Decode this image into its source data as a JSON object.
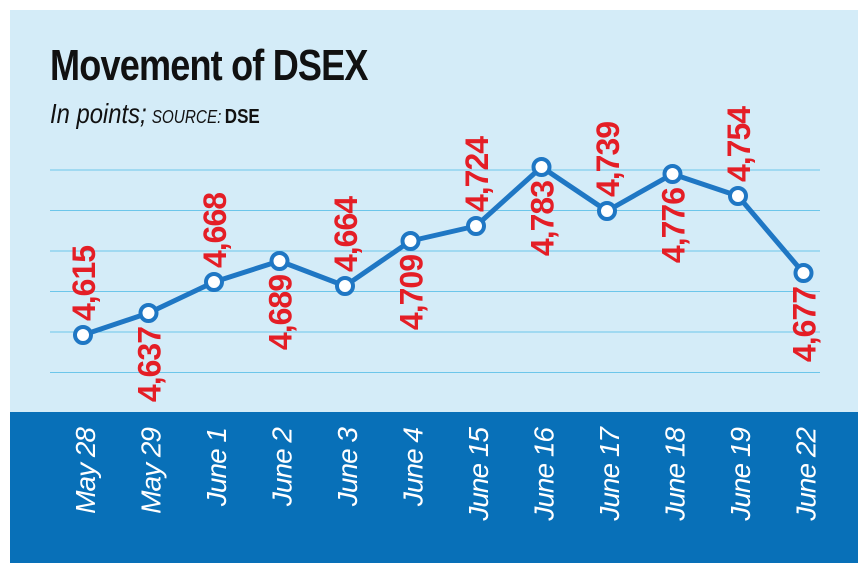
{
  "title": "Movement of DSEX",
  "subtitle": "In points;",
  "source_label": "SOURCE:",
  "source": "DSE",
  "colors": {
    "background": "#d4ecf8",
    "gridline": "#6cc6ea",
    "line": "#1f77c4",
    "marker_fill": "#ffffff",
    "value_label": "#e41e26",
    "x_band": "#0870b8",
    "x_label": "#ffffff"
  },
  "chart_data": {
    "type": "line",
    "title": "Movement of DSEX",
    "subtitle": "In points; SOURCE: DSE",
    "xlabel": "",
    "ylabel": "",
    "categories": [
      "May 28",
      "May 29",
      "June 1",
      "June 2",
      "June 3",
      "June 4",
      "June 15",
      "June 16",
      "June 17",
      "June 18",
      "June 19",
      "June 22"
    ],
    "values": [
      4615,
      4637,
      4668,
      4689,
      4664,
      4709,
      4724,
      4783,
      4739,
      4776,
      4754,
      4677
    ],
    "value_labels": [
      "4,615",
      "4,637",
      "4,668",
      "4,689",
      "4,664",
      "4,709",
      "4,724",
      "4,783",
      "4,739",
      "4,776",
      "4,754",
      "4,677"
    ],
    "label_positions": [
      "above",
      "below",
      "above",
      "below",
      "above",
      "below",
      "above",
      "below",
      "above",
      "below",
      "above",
      "below"
    ],
    "ylim": [
      4560,
      4800
    ],
    "grid": true
  }
}
